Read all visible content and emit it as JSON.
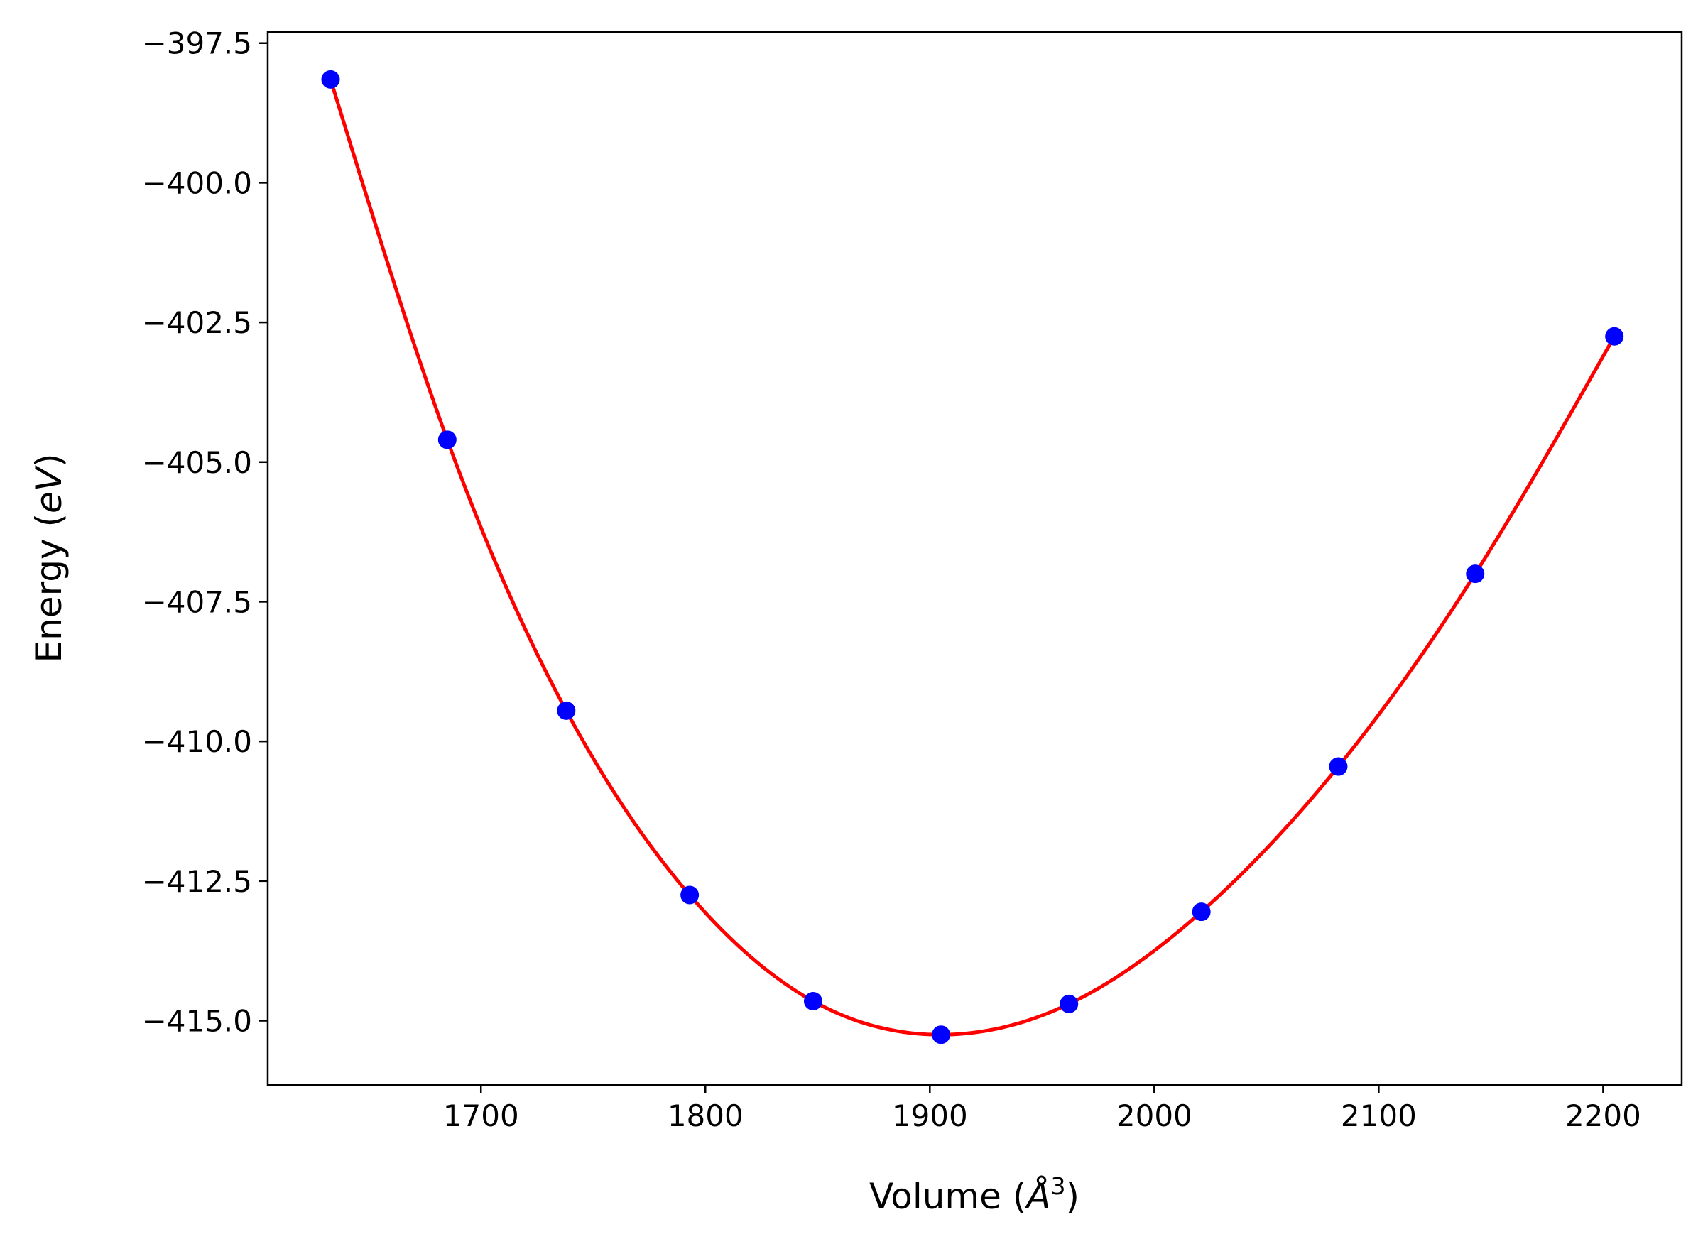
{
  "chart_data": {
    "type": "scatter",
    "xlabel": "Volume (Å³)",
    "xlabel_parts": {
      "prefix": "Volume (",
      "symbol": "Å",
      "power": "3",
      "suffix": ")"
    },
    "ylabel": "Energy (eV)",
    "ylabel_parts": {
      "prefix": "Energy (",
      "unit": "eV",
      "suffix": ")"
    },
    "xlim": [
      1605,
      2235
    ],
    "ylim": [
      -416.15,
      -397.3
    ],
    "x_ticks": [
      1700,
      1800,
      1900,
      2000,
      2100,
      2200
    ],
    "y_ticks": [
      -397.5,
      -400.0,
      -402.5,
      -405.0,
      -407.5,
      -410.0,
      -412.5,
      -415.0
    ],
    "x_tick_labels": [
      "1700",
      "1800",
      "1900",
      "2000",
      "2100",
      "2200"
    ],
    "y_tick_labels": [
      "−397.5",
      "−400.0",
      "−402.5",
      "−405.0",
      "−407.5",
      "−410.0",
      "−412.5",
      "−415.0"
    ],
    "grid": false,
    "legend": "none",
    "series": [
      {
        "kind": "points",
        "color": "#0000ff",
        "x": [
          1633,
          1685,
          1738,
          1793,
          1848,
          1905,
          1962,
          2021,
          2082,
          2143,
          2205
        ],
        "y": [
          -398.15,
          -404.6,
          -409.45,
          -412.75,
          -414.65,
          -415.25,
          -414.7,
          -413.05,
          -410.45,
          -407.0,
          -402.75
        ]
      },
      {
        "kind": "fit",
        "color": "#ff0000",
        "x": [
          1633,
          1685,
          1738,
          1793,
          1848,
          1905,
          1962,
          2021,
          2082,
          2143,
          2205
        ],
        "y": [
          -398.15,
          -404.6,
          -409.45,
          -412.75,
          -414.65,
          -415.25,
          -414.7,
          -413.05,
          -410.45,
          -407.0,
          -402.75
        ]
      }
    ]
  }
}
